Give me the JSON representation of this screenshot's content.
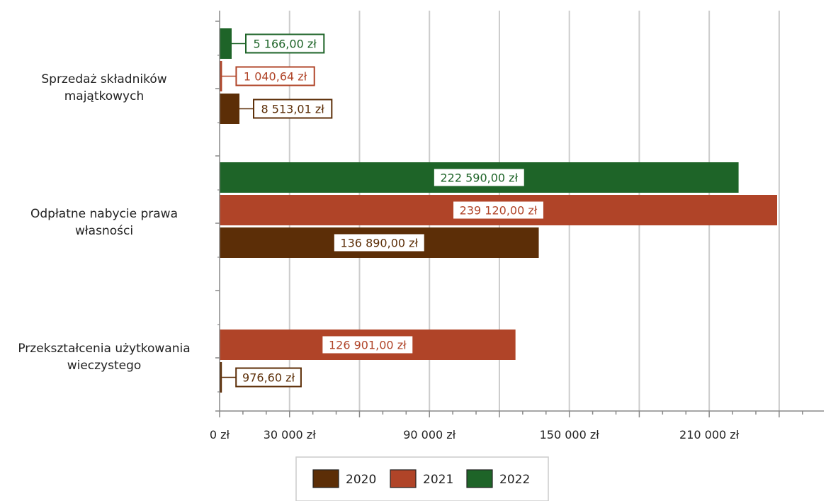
{
  "chart_data": {
    "type": "bar",
    "orientation": "horizontal",
    "categories": [
      [
        "Sprzedaż składników",
        "majątkowych"
      ],
      [
        "Odpłatne nabycie prawa",
        "własności"
      ],
      [
        "Przekształcenia użytkowania",
        "wieczystego"
      ]
    ],
    "series": [
      {
        "name": "2020",
        "color": "#5c2e07",
        "values": [
          8513.01,
          136890.0,
          976.6
        ],
        "labels": [
          "8 513,01 zł",
          "136 890,00 zł",
          "976,60 zł"
        ]
      },
      {
        "name": "2021",
        "color": "#b04428",
        "values": [
          1040.64,
          239120.0,
          126901.0
        ],
        "labels": [
          "1 040,64 zł",
          "239 120,00 zł",
          "126 901,00 zł"
        ]
      },
      {
        "name": "2022",
        "color": "#1e6428",
        "values": [
          5166.0,
          222590.0,
          null
        ],
        "labels": [
          "5 166,00 zł",
          "222 590,00 zł",
          ""
        ]
      }
    ],
    "xlim": [
      0,
      260000
    ],
    "x_ticks": [
      0,
      30000,
      90000,
      150000,
      210000
    ],
    "x_tick_labels": [
      "0 zł",
      "30 000 zł",
      "90 000 zł",
      "150 000 zł",
      "210 000 zł"
    ],
    "grid": true,
    "legend": "bottom",
    "title": "",
    "xlabel": "",
    "ylabel": ""
  }
}
